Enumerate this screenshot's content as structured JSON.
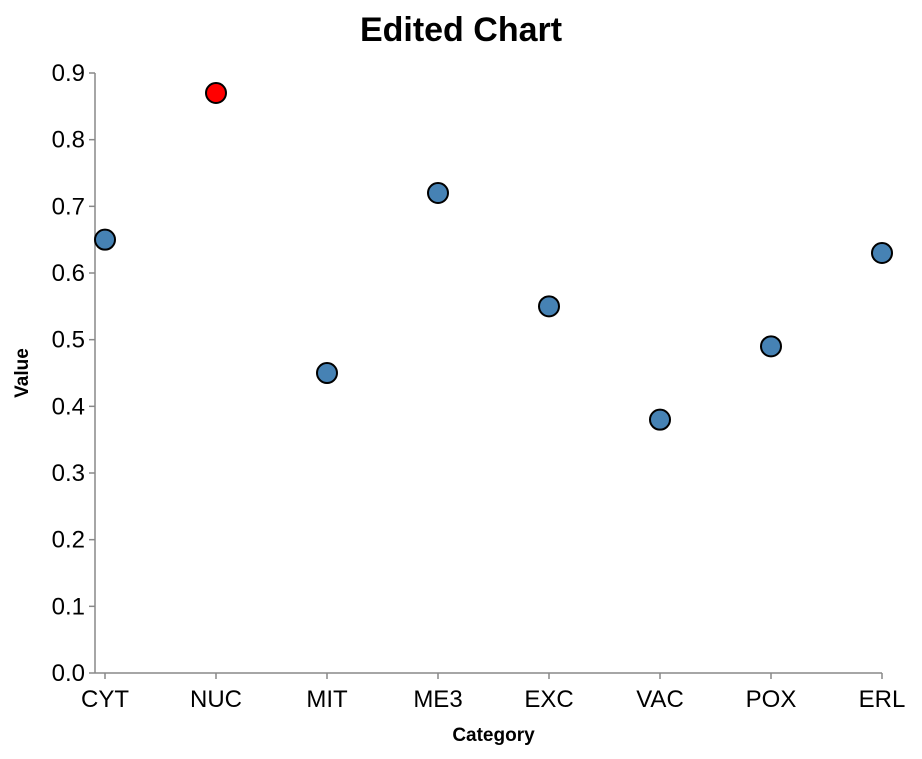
{
  "chart_data": {
    "type": "scatter",
    "title": "Edited Chart",
    "xlabel": "Category",
    "ylabel": "Value",
    "categories": [
      "CYT",
      "NUC",
      "MIT",
      "ME3",
      "EXC",
      "VAC",
      "POX",
      "ERL"
    ],
    "values": [
      0.65,
      0.87,
      0.45,
      0.72,
      0.55,
      0.38,
      0.49,
      0.63
    ],
    "highlight_index": 1,
    "ylim": [
      0,
      0.9
    ],
    "yticks": [
      "0.0",
      "0.1",
      "0.2",
      "0.3",
      "0.4",
      "0.5",
      "0.6",
      "0.7",
      "0.8",
      "0.9"
    ],
    "grid": false,
    "legend": "none",
    "colors": {
      "point": "#4682b4",
      "highlight": "#ff0000",
      "point_stroke": "#000000",
      "axis": "#888888"
    }
  }
}
